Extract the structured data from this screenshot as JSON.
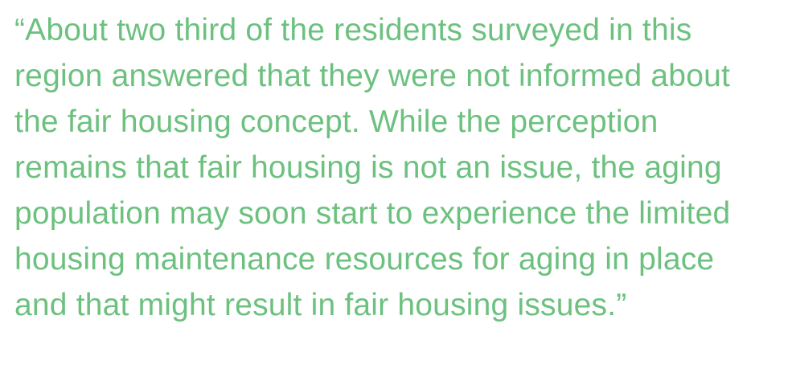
{
  "quote": {
    "lines": [
      "“About two third of the residents surveyed in this",
      "region answered that they were not informed about",
      "the fair housing concept. While the perception",
      "remains that fair housing is not an issue, the aging",
      "population may soon start to experience the limited",
      "housing maintenance resources for aging in place",
      "and that might result in fair housing issues.”"
    ]
  }
}
